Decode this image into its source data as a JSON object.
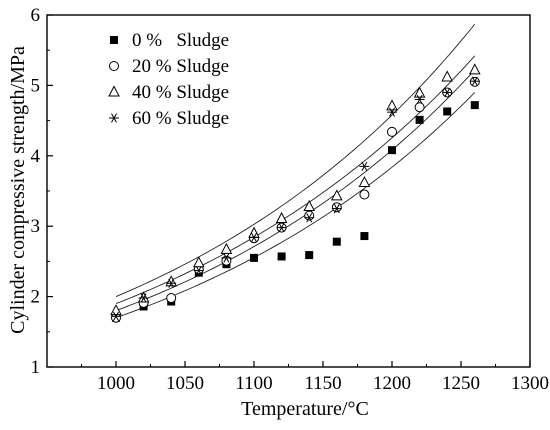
{
  "chart_data": {
    "type": "scatter",
    "title": "",
    "xlabel": "Temperature/°C",
    "ylabel": "Cylinder compressive strength/MPa",
    "xlim": [
      950,
      1300
    ],
    "ylim": [
      1,
      6
    ],
    "x_ticks": [
      1000,
      1050,
      1100,
      1150,
      1200,
      1250,
      1300
    ],
    "y_ticks": [
      1,
      2,
      3,
      4,
      5,
      6
    ],
    "grid": false,
    "legend_position": "top-left",
    "series": [
      {
        "name": "0 %   Sludge",
        "marker": "filled-square",
        "x": [
          1000,
          1020,
          1040,
          1060,
          1080,
          1100,
          1120,
          1140,
          1160,
          1180,
          1200,
          1220,
          1240,
          1260
        ],
        "y": [
          1.7,
          1.86,
          1.93,
          2.34,
          2.46,
          2.55,
          2.57,
          2.59,
          2.78,
          2.86,
          4.08,
          4.51,
          4.63,
          4.72
        ]
      },
      {
        "name": "20 % Sludge",
        "marker": "open-circle",
        "x": [
          1000,
          1020,
          1040,
          1060,
          1080,
          1100,
          1120,
          1140,
          1160,
          1180,
          1200,
          1220,
          1240,
          1260
        ],
        "y": [
          1.7,
          1.91,
          1.98,
          2.39,
          2.51,
          2.83,
          2.98,
          3.15,
          3.27,
          3.45,
          4.34,
          4.69,
          4.9,
          5.05
        ]
      },
      {
        "name": "40 % Sludge",
        "marker": "open-triangle",
        "x": [
          1000,
          1020,
          1040,
          1060,
          1080,
          1100,
          1120,
          1140,
          1160,
          1180,
          1200,
          1220,
          1240,
          1260
        ],
        "y": [
          1.8,
          1.98,
          2.21,
          2.48,
          2.67,
          2.9,
          3.11,
          3.28,
          3.43,
          3.62,
          4.71,
          4.89,
          5.12,
          5.22
        ]
      },
      {
        "name": "60 % Sludge",
        "marker": "asterisk",
        "x": [
          1000,
          1020,
          1040,
          1060,
          1080,
          1100,
          1120,
          1140,
          1160,
          1180,
          1200,
          1220,
          1240,
          1260
        ],
        "y": [
          1.72,
          1.98,
          2.19,
          2.37,
          2.55,
          2.84,
          2.98,
          3.12,
          3.25,
          3.85,
          4.62,
          4.8,
          4.9,
          5.06
        ]
      }
    ],
    "fit_curves": [
      {
        "x": [
          1000,
          1260
        ],
        "y": [
          1.7,
          4.9
        ]
      },
      {
        "x": [
          1000,
          1260
        ],
        "y": [
          1.8,
          5.22
        ]
      },
      {
        "x": [
          1000,
          1260
        ],
        "y": [
          1.9,
          5.42
        ]
      },
      {
        "x": [
          1000,
          1260
        ],
        "y": [
          2.0,
          5.87
        ]
      }
    ]
  }
}
